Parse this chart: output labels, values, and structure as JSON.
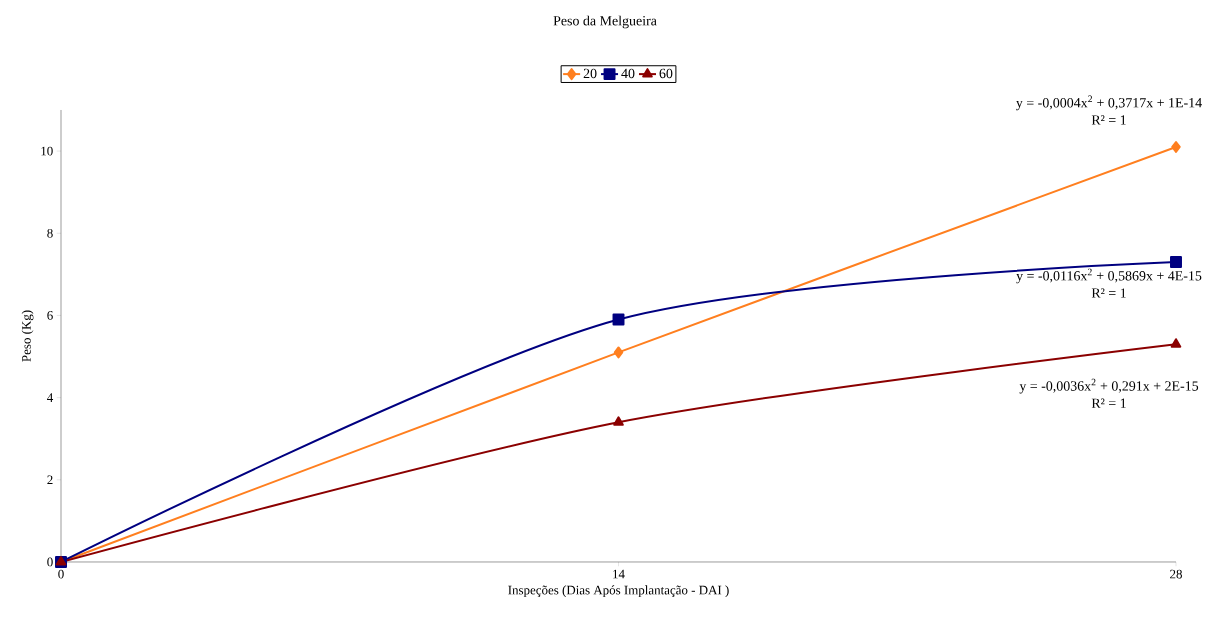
{
  "chart_data": {
    "type": "line",
    "title": "Peso da Melgueira",
    "xlabel": "Inspeções (Dias Após Implantação - DAI )",
    "ylabel": "Peso (Kg)",
    "x": [
      0,
      14,
      28
    ],
    "series": [
      {
        "name": "20",
        "color": "#ff7f1f",
        "marker": "diamond",
        "values": [
          0,
          5.1,
          10.1
        ]
      },
      {
        "name": "40",
        "color": "#000080",
        "marker": "square",
        "values": [
          0,
          5.9,
          7.3
        ]
      },
      {
        "name": "60",
        "color": "#8b0000",
        "marker": "triangle",
        "values": [
          0,
          3.4,
          5.3
        ]
      }
    ],
    "xlim": [
      0,
      28
    ],
    "ylim": [
      0,
      11
    ],
    "xticks": [
      0,
      14,
      28
    ],
    "yticks": [
      0,
      2,
      4,
      6,
      8,
      10
    ],
    "legend": "top",
    "grid": false,
    "line_style": "solid",
    "annotations": [
      "y = -0,0004x$^{2}$ + 0,3717x + 1E-14",
      "R² = 1",
      "y = -0,0116x$^{2}$ + 0,5869x + 4E-15",
      "R² = 1",
      "y = -0,0036x$^{2}$ + 0,291x + 2E-15",
      "R² = 1"
    ]
  }
}
